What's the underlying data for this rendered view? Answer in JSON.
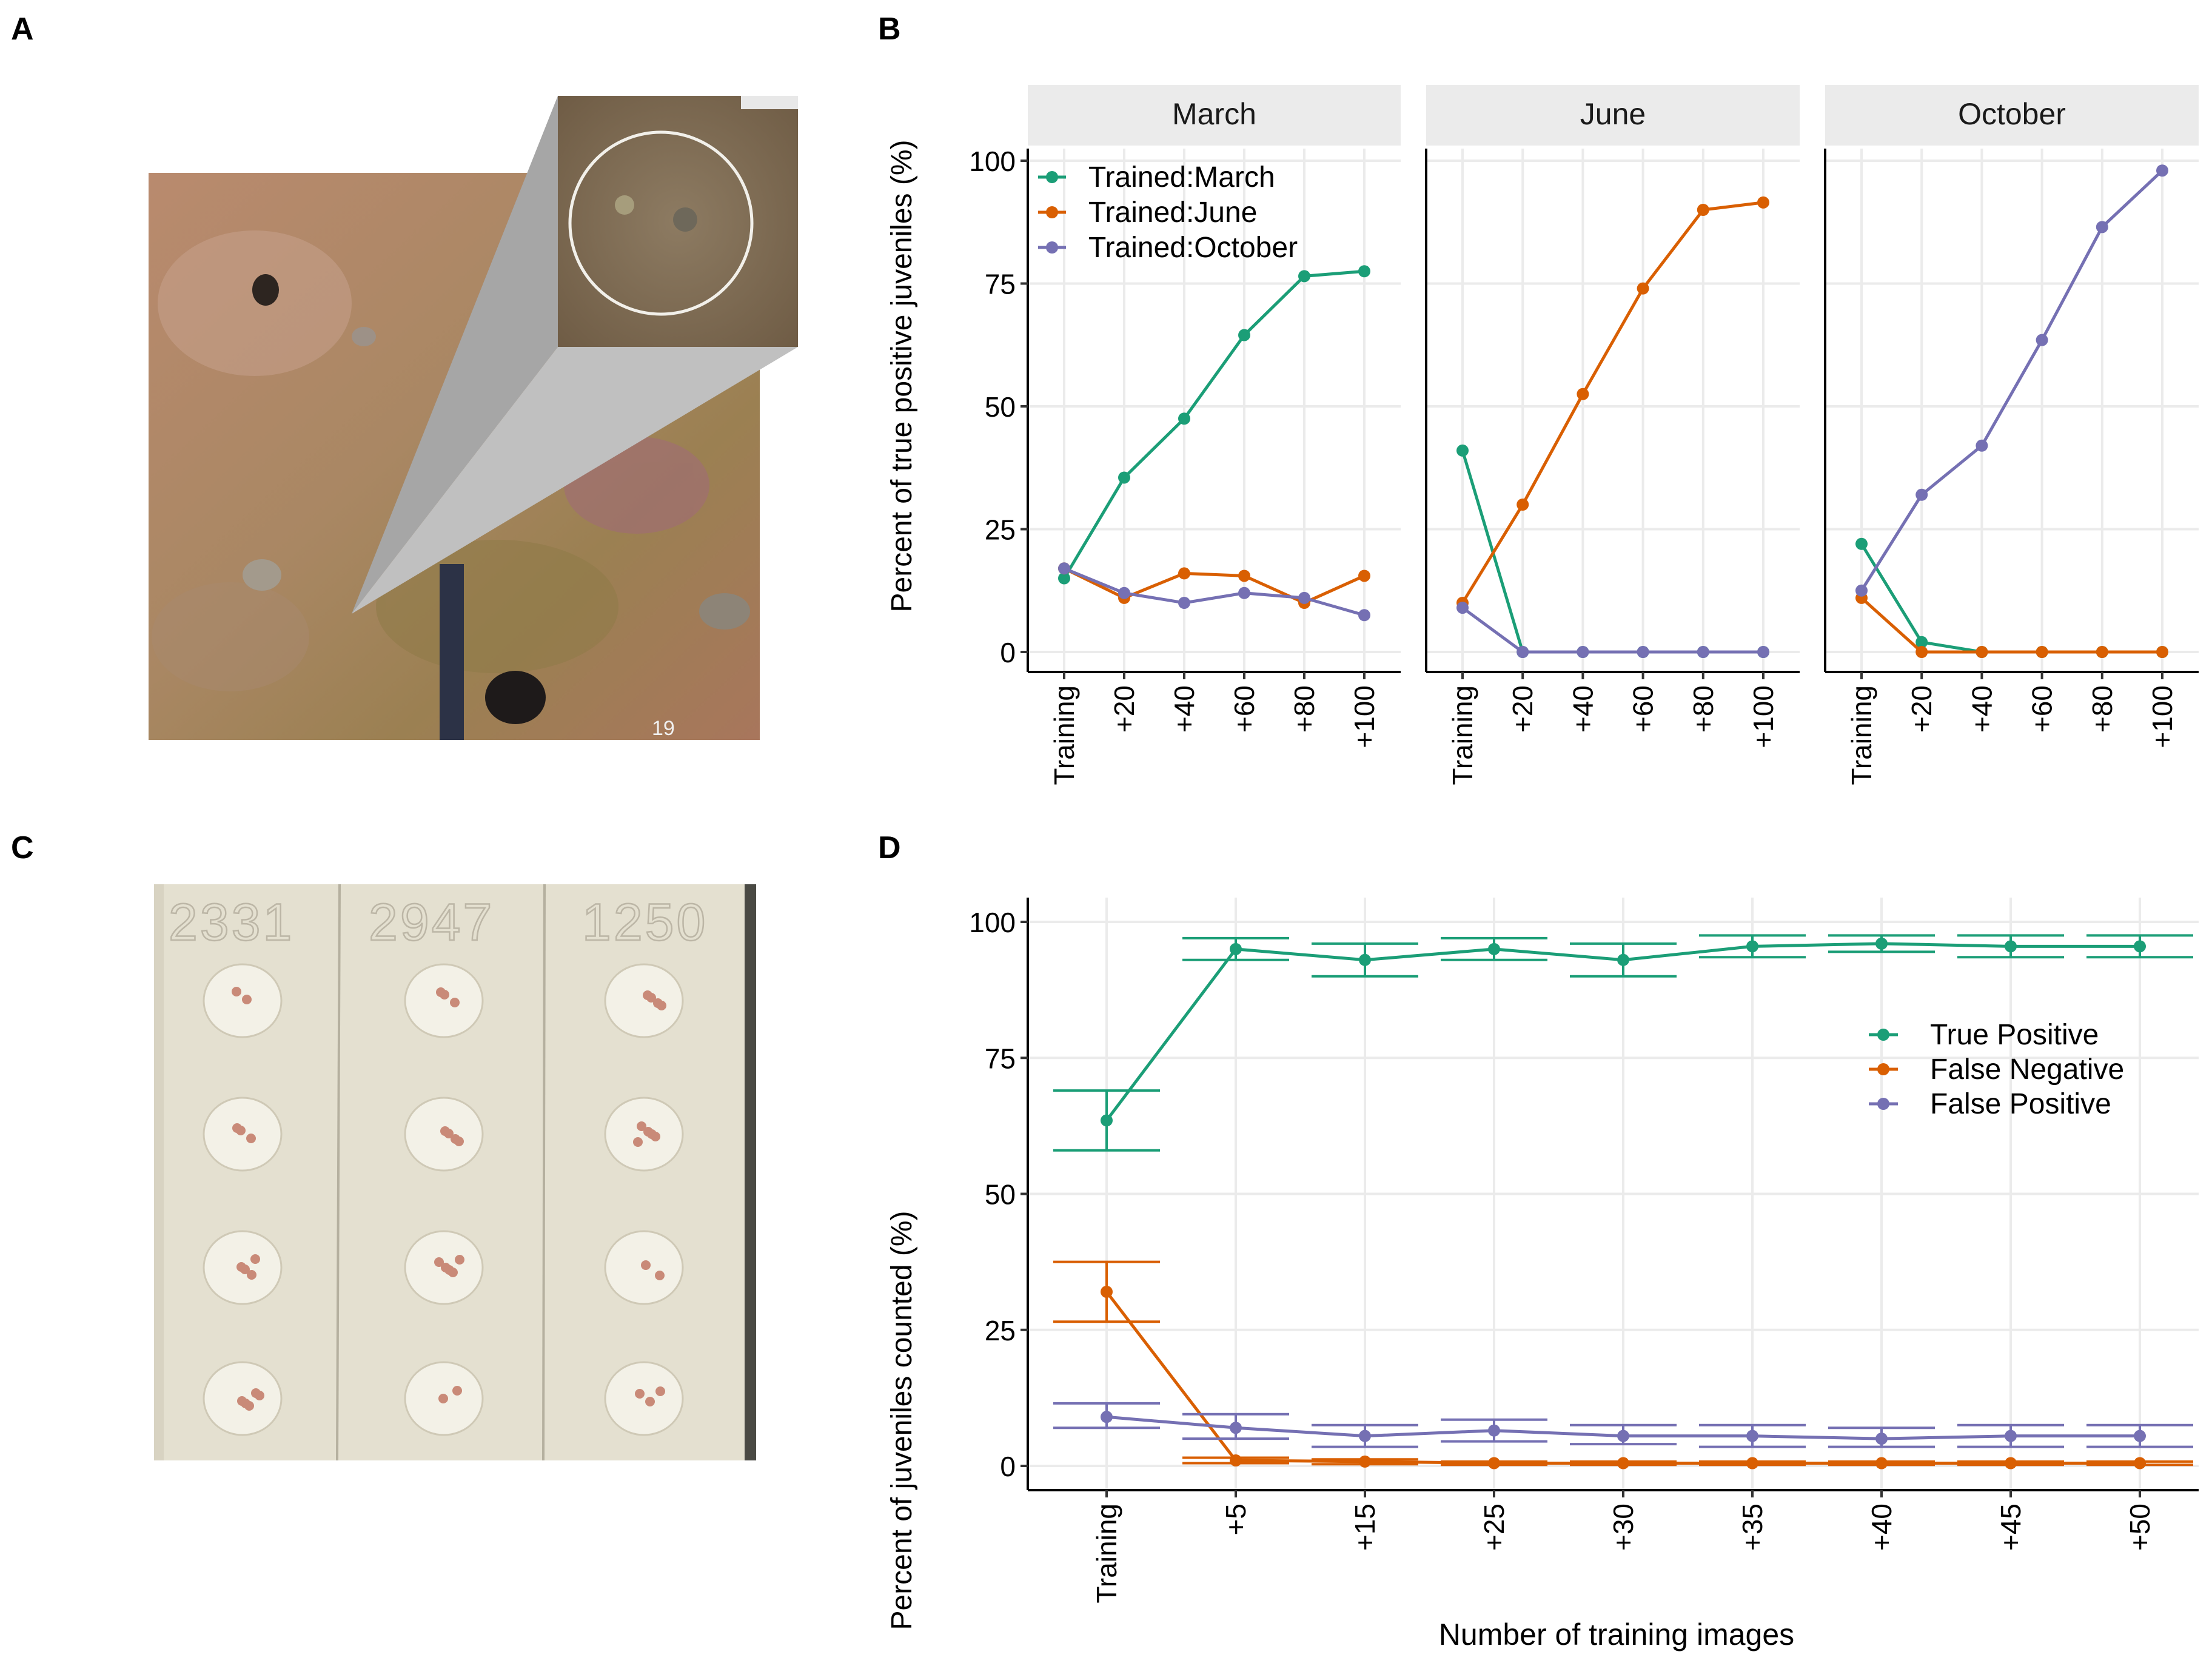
{
  "panels": {
    "A": {
      "letter": "A",
      "scale_label": "19",
      "colors": {
        "plate_base": "#b78a6a",
        "plate_dark": "#7f6a52",
        "zoom_panel": "#a9a9a9",
        "zoom_bg": "#86745c",
        "circle": "#f4f1ea"
      }
    },
    "B": {
      "letter": "B",
      "ylabel": "Percent of true positive juveniles (%)",
      "yticks": [
        "0",
        "25",
        "50",
        "75",
        "100"
      ],
      "xticks": [
        "Training",
        "+20",
        "+40",
        "+60",
        "+80",
        "+100"
      ],
      "facets": [
        "March",
        "June",
        "October"
      ],
      "legend": [
        "Trained:March",
        "Trained:June",
        "Trained:October"
      ]
    },
    "C": {
      "letter": "C",
      "plate_labels": [
        "2331",
        "2947",
        "1250"
      ]
    },
    "D": {
      "letter": "D",
      "ylabel": "Percent of juveniles counted (%)",
      "xlabel": "Number of training images",
      "yticks": [
        "0",
        "25",
        "50",
        "75",
        "100"
      ],
      "xticks": [
        "Training",
        "+5",
        "+15",
        "+25",
        "+30",
        "+35",
        "+40",
        "+45",
        "+50"
      ],
      "legend": [
        "True Positive",
        "False Negative",
        "False Positive"
      ]
    }
  },
  "colors": {
    "green": "#1b9e77",
    "orange": "#d95f02",
    "purple": "#7570b3",
    "strip": "#ebebeb",
    "grid": "#ebebeb"
  },
  "chart_data": [
    {
      "panel": "B",
      "type": "line",
      "facets": [
        "March",
        "June",
        "October"
      ],
      "categories": [
        "Training",
        "+20",
        "+40",
        "+60",
        "+80",
        "+100"
      ],
      "ylabel": "Percent of true positive juveniles (%)",
      "ylim": [
        0,
        100
      ],
      "yticks": [
        0,
        25,
        50,
        75,
        100
      ],
      "legend_position": "top-left",
      "grid": true,
      "series": [
        {
          "name": "Trained:March",
          "color": "#1b9e77",
          "values_by_facet": {
            "March": [
              15,
              35.5,
              47.5,
              64.5,
              76.5,
              77.5
            ],
            "June": [
              41,
              0,
              0,
              0,
              0,
              0
            ],
            "October": [
              22,
              2,
              0,
              0,
              0,
              0
            ]
          }
        },
        {
          "name": "Trained:June",
          "color": "#d95f02",
          "values_by_facet": {
            "March": [
              17,
              11,
              16,
              15.5,
              10,
              15.5
            ],
            "June": [
              10,
              30,
              52.5,
              74,
              90,
              91.5
            ],
            "October": [
              11,
              0,
              0,
              0,
              0,
              0
            ]
          }
        },
        {
          "name": "Trained:October",
          "color": "#7570b3",
          "values_by_facet": {
            "March": [
              17,
              12,
              10,
              12,
              11,
              7.5
            ],
            "June": [
              9,
              0,
              0,
              0,
              0,
              0
            ],
            "October": [
              12.5,
              32,
              42,
              63.5,
              86.5,
              98
            ]
          }
        }
      ]
    },
    {
      "panel": "D",
      "type": "line",
      "categories": [
        "Training",
        "+5",
        "+15",
        "+25",
        "+30",
        "+35",
        "+40",
        "+45",
        "+50"
      ],
      "xlabel": "Number of training images",
      "ylabel": "Percent of juveniles counted (%)",
      "ylim": [
        0,
        100
      ],
      "yticks": [
        0,
        25,
        50,
        75,
        100
      ],
      "legend_position": "right",
      "grid": true,
      "error_bars": true,
      "series": [
        {
          "name": "True Positive",
          "color": "#1b9e77",
          "values": [
            63.5,
            95,
            93,
            95,
            93,
            95.5,
            96,
            95.5,
            95.5
          ],
          "lower": [
            58,
            93,
            90,
            93,
            90,
            93.5,
            94.5,
            93.5,
            93.5
          ],
          "upper": [
            69,
            97,
            96,
            97,
            96,
            97.5,
            97.5,
            97.5,
            97.5
          ]
        },
        {
          "name": "False Negative",
          "color": "#d95f02",
          "values": [
            32,
            1,
            0.8,
            0.5,
            0.5,
            0.5,
            0.5,
            0.5,
            0.5
          ],
          "lower": [
            26.5,
            0.5,
            0.3,
            0.2,
            0.2,
            0.2,
            0.2,
            0.2,
            0.2
          ],
          "upper": [
            37.5,
            1.5,
            1.2,
            0.8,
            0.8,
            0.8,
            0.8,
            0.8,
            0.8
          ]
        },
        {
          "name": "False Positive",
          "color": "#7570b3",
          "values": [
            9,
            7,
            5.5,
            6.5,
            5.5,
            5.5,
            5,
            5.5,
            5.5
          ],
          "lower": [
            7,
            5,
            3.5,
            4.5,
            4,
            3.5,
            3.5,
            3.5,
            3.5
          ],
          "upper": [
            11.5,
            9.5,
            7.5,
            8.5,
            7.5,
            7.5,
            7,
            7.5,
            7.5
          ]
        }
      ]
    }
  ]
}
